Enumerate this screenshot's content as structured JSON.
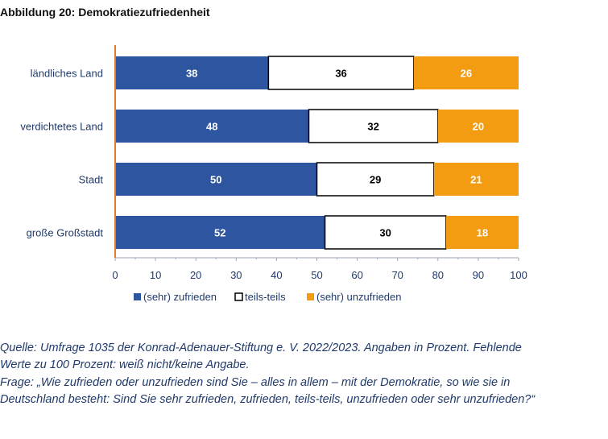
{
  "title": "Abbildung 20: Demokratiezufriedenheit",
  "colors": {
    "zufrieden": "#2e55a0",
    "teils": "#ffffff",
    "unzufrieden": "#f39c12",
    "axis": "#e07b2a",
    "tick_text": "#1f3a6b",
    "label_text": "#1f3a6b",
    "note_text": "#1f3a6b"
  },
  "chart_data": {
    "type": "bar",
    "orientation": "horizontal",
    "stacked": true,
    "categories": [
      "ländliches Land",
      "verdichtetes Land",
      "Stadt",
      "große Großstadt"
    ],
    "series": [
      {
        "name": "(sehr) zufrieden",
        "values": [
          38,
          48,
          50,
          52
        ]
      },
      {
        "name": "teils-teils",
        "values": [
          36,
          32,
          29,
          30
        ]
      },
      {
        "name": "(sehr) unzufrieden",
        "values": [
          26,
          20,
          21,
          18
        ]
      }
    ],
    "xlim": [
      0,
      100
    ],
    "xticks": [
      "0",
      "10",
      "20",
      "30",
      "40",
      "50",
      "60",
      "70",
      "80",
      "90",
      "100"
    ],
    "legend_position": "bottom",
    "grid": false
  },
  "notes": {
    "source_line1": "Quelle: Umfrage 1035 der Konrad-Adenauer-Stiftung e. V. 2022/2023. Angaben in Prozent. Fehlende",
    "source_line2": "Werte zu 100 Prozent: weiß nicht/keine Angabe.",
    "question_line1": "Frage: „Wie zufrieden oder unzufrieden sind Sie – alles in allem – mit der Demokratie, so wie sie in",
    "question_line2": "Deutschland besteht: Sind Sie sehr zufrieden, zufrieden, teils-teils, unzufrieden oder sehr unzufrieden?“"
  }
}
